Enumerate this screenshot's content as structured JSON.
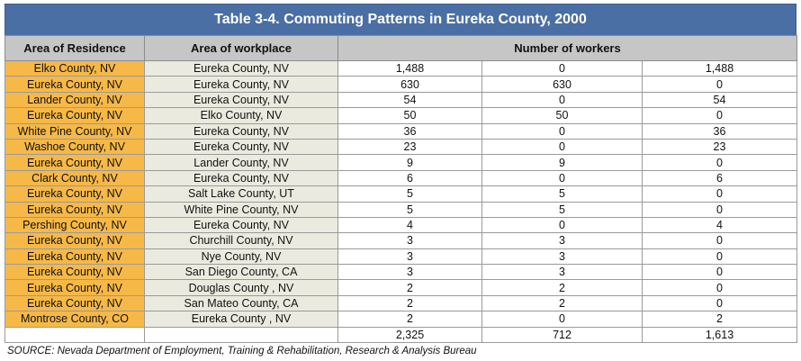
{
  "title": "Table 3-4. Commuting Patterns in Eureka County, 2000",
  "headers": {
    "residence": "Area of Residence",
    "workplace": "Area of workplace",
    "workers": "Number of workers"
  },
  "rows": [
    {
      "residence": "Elko County, NV",
      "workplace": "Eureka County, NV",
      "total": "1,488",
      "outbound": "0",
      "inbound": "1,488"
    },
    {
      "residence": "Eureka County, NV",
      "workplace": "Eureka County, NV",
      "total": "630",
      "outbound": "630",
      "inbound": "0"
    },
    {
      "residence": "Lander County, NV",
      "workplace": "Eureka County, NV",
      "total": "54",
      "outbound": "0",
      "inbound": "54"
    },
    {
      "residence": "Eureka County, NV",
      "workplace": "Elko County, NV",
      "total": "50",
      "outbound": "50",
      "inbound": "0"
    },
    {
      "residence": "White Pine County, NV",
      "workplace": "Eureka County, NV",
      "total": "36",
      "outbound": "0",
      "inbound": "36"
    },
    {
      "residence": "Washoe County, NV",
      "workplace": "Eureka County, NV",
      "total": "23",
      "outbound": "0",
      "inbound": "23"
    },
    {
      "residence": "Eureka County, NV",
      "workplace": "Lander County, NV",
      "total": "9",
      "outbound": "9",
      "inbound": "0"
    },
    {
      "residence": "Clark County, NV",
      "workplace": "Eureka County, NV",
      "total": "6",
      "outbound": "0",
      "inbound": "6"
    },
    {
      "residence": "Eureka County, NV",
      "workplace": "Salt Lake County, UT",
      "total": "5",
      "outbound": "5",
      "inbound": "0"
    },
    {
      "residence": "Eureka County, NV",
      "workplace": "White Pine County, NV",
      "total": "5",
      "outbound": "5",
      "inbound": "0"
    },
    {
      "residence": "Pershing County, NV",
      "workplace": "Eureka County, NV",
      "total": "4",
      "outbound": "0",
      "inbound": "4"
    },
    {
      "residence": "Eureka County, NV",
      "workplace": "Churchill County, NV",
      "total": "3",
      "outbound": "3",
      "inbound": "0"
    },
    {
      "residence": "Eureka County, NV",
      "workplace": "Nye County, NV",
      "total": "3",
      "outbound": "3",
      "inbound": "0"
    },
    {
      "residence": "Eureka County, NV",
      "workplace": "San Diego County, CA",
      "total": "3",
      "outbound": "3",
      "inbound": "0"
    },
    {
      "residence": "Eureka County, NV",
      "workplace": "Douglas County , NV",
      "total": "2",
      "outbound": "2",
      "inbound": "0"
    },
    {
      "residence": "Eureka County, NV",
      "workplace": "San Mateo County, CA",
      "total": "2",
      "outbound": "2",
      "inbound": "0"
    },
    {
      "residence": "Montrose County, CO",
      "workplace": "Eureka County , NV",
      "total": "2",
      "outbound": "0",
      "inbound": "2"
    }
  ],
  "totals": {
    "total": "2,325",
    "outbound": "712",
    "inbound": "1,613"
  },
  "source": "SOURCE: Nevada Department of Employment, Training & Rehabilitation, Research & Analysis Bureau",
  "colors": {
    "title_bg": "#4a6fa4",
    "header_bg": "#c6c6c6",
    "residence_bg": "#f6b847",
    "workplace_bg": "#ebeadf"
  }
}
